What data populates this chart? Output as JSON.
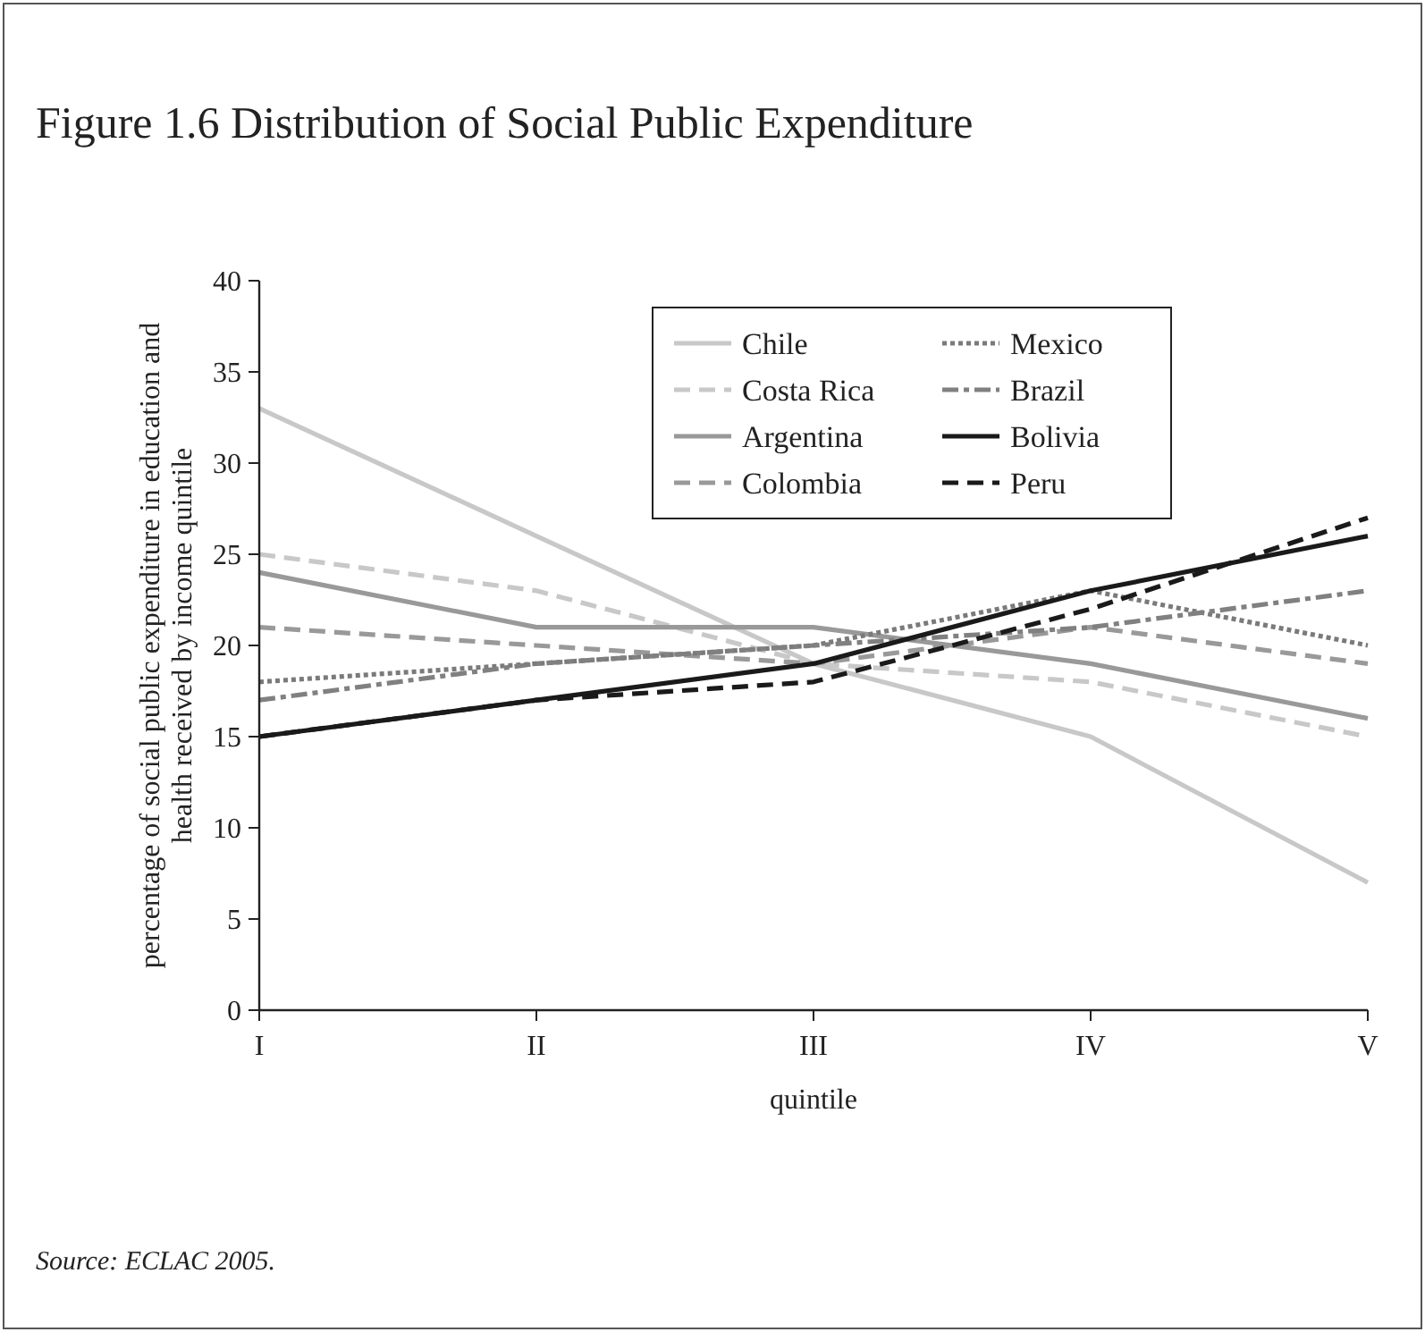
{
  "chart_data": {
    "type": "line",
    "title": "Figure 1.6 Distribution of Social Public Expenditure",
    "xlabel": "quintile",
    "ylabel": "percentage of social public expenditure in education and health received by income quintile",
    "annotations": [
      "Source: ECLAC 2005."
    ],
    "categories": [
      "I",
      "II",
      "III",
      "IV",
      "V"
    ],
    "ylim": [
      0,
      40
    ],
    "yticks": [
      0,
      5,
      10,
      15,
      20,
      25,
      30,
      35,
      40
    ],
    "grid": false,
    "legend": "top right",
    "marker": "none",
    "series": [
      {
        "name": "Chile",
        "color": "#c8c8c8",
        "line_style": "solid",
        "values": [
          33,
          26,
          19,
          15,
          7
        ]
      },
      {
        "name": "Costa Rica",
        "color": "#c8c8c8",
        "line_style": "dashed",
        "values": [
          25,
          23,
          19,
          18,
          15
        ]
      },
      {
        "name": "Argentina",
        "color": "#999999",
        "line_style": "solid",
        "values": [
          24,
          21,
          21,
          19,
          16
        ]
      },
      {
        "name": "Colombia",
        "color": "#999999",
        "line_style": "dashed",
        "values": [
          21,
          20,
          19,
          21,
          19
        ]
      },
      {
        "name": "Mexico",
        "color": "#7a7a7a",
        "line_style": "dotted",
        "values": [
          18,
          19,
          20,
          23,
          20
        ]
      },
      {
        "name": "Brazil",
        "color": "#808080",
        "line_style": "dashdot",
        "values": [
          17,
          19,
          20,
          21,
          23
        ]
      },
      {
        "name": "Bolivia",
        "color": "#1a1a1a",
        "line_style": "solid",
        "values": [
          15,
          17,
          19,
          23,
          26
        ]
      },
      {
        "name": "Peru",
        "color": "#1a1a1a",
        "line_style": "dashed",
        "values": [
          15,
          17,
          18,
          22,
          27
        ]
      }
    ]
  }
}
